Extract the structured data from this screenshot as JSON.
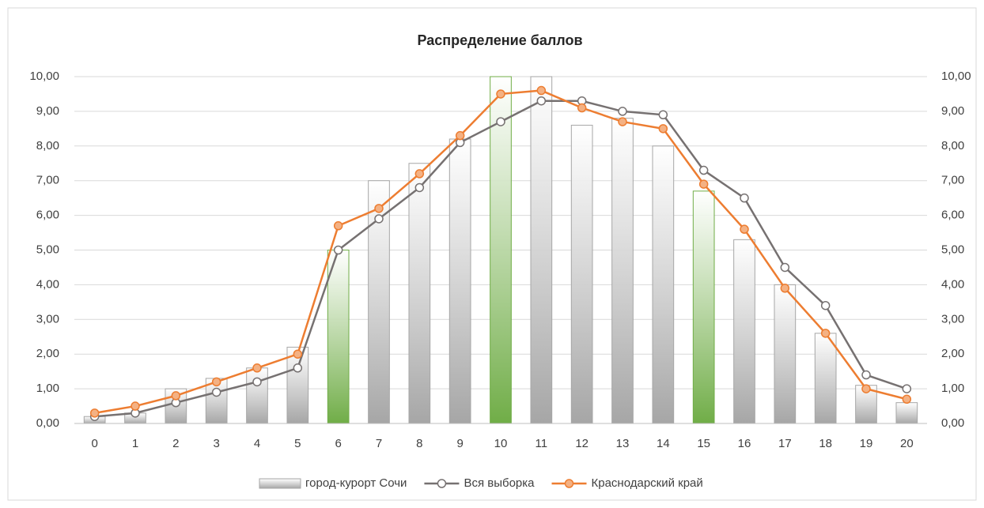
{
  "chart_data": {
    "type": "bar_line",
    "title": "Распределение баллов",
    "categories": [
      "0",
      "1",
      "2",
      "3",
      "4",
      "5",
      "6",
      "7",
      "8",
      "9",
      "10",
      "11",
      "12",
      "13",
      "14",
      "15",
      "16",
      "17",
      "18",
      "19",
      "20"
    ],
    "series": [
      {
        "name": "город-курорт Сочи",
        "type": "bar",
        "color": "#a6a6a6",
        "colors": [
          "#a6a6a6",
          "#a6a6a6",
          "#a6a6a6",
          "#a6a6a6",
          "#a6a6a6",
          "#a6a6a6",
          "#70ad47",
          "#a6a6a6",
          "#a6a6a6",
          "#a6a6a6",
          "#70ad47",
          "#a6a6a6",
          "#a6a6a6",
          "#a6a6a6",
          "#a6a6a6",
          "#70ad47",
          "#a6a6a6",
          "#a6a6a6",
          "#a6a6a6",
          "#a6a6a6",
          "#a6a6a6"
        ],
        "values": [
          0.2,
          0.3,
          1.0,
          1.3,
          1.6,
          2.2,
          5.0,
          7.0,
          7.5,
          8.2,
          10.0,
          10.0,
          8.6,
          8.8,
          8.0,
          6.7,
          5.3,
          4.0,
          2.6,
          1.1,
          0.6
        ]
      },
      {
        "name": "Вся выборка",
        "type": "line",
        "axis": "y2",
        "color": "#767171",
        "marker_fill": "#ffffff",
        "values": [
          0.2,
          0.3,
          0.6,
          0.9,
          1.2,
          1.6,
          5.0,
          5.9,
          6.8,
          8.1,
          8.7,
          9.3,
          9.3,
          9.0,
          8.9,
          7.3,
          6.5,
          4.5,
          3.4,
          1.4,
          1.0
        ]
      },
      {
        "name": "Краснодарский край",
        "type": "line",
        "axis": "y2",
        "color": "#ed7d31",
        "marker_fill": "#f4b183",
        "values": [
          0.3,
          0.5,
          0.8,
          1.2,
          1.6,
          2.0,
          5.7,
          6.2,
          7.2,
          8.3,
          9.5,
          9.6,
          9.1,
          8.7,
          8.5,
          6.9,
          5.6,
          3.9,
          2.6,
          1.0,
          0.7
        ]
      }
    ],
    "ylim": [
      0,
      10
    ],
    "yticks": [
      {
        "value": 0,
        "label": "0,00"
      },
      {
        "value": 1,
        "label": "1,00"
      },
      {
        "value": 2,
        "label": "2,00"
      },
      {
        "value": 3,
        "label": "3,00"
      },
      {
        "value": 4,
        "label": "4,00"
      },
      {
        "value": 5,
        "label": "5,00"
      },
      {
        "value": 6,
        "label": "6,00"
      },
      {
        "value": 7,
        "label": "7,00"
      },
      {
        "value": 8,
        "label": "8,00"
      },
      {
        "value": 9,
        "label": "9,00"
      },
      {
        "value": 10,
        "label": "10,00"
      }
    ],
    "y2lim": [
      0,
      10
    ],
    "y2ticks": [
      {
        "value": 0,
        "label": "0,00"
      },
      {
        "value": 1,
        "label": "1,00"
      },
      {
        "value": 2,
        "label": "2,00"
      },
      {
        "value": 3,
        "label": "3,00"
      },
      {
        "value": 4,
        "label": "4,00"
      },
      {
        "value": 5,
        "label": "5,00"
      },
      {
        "value": 6,
        "label": "6,00"
      },
      {
        "value": 7,
        "label": "7,00"
      },
      {
        "value": 8,
        "label": "8,00"
      },
      {
        "value": 9,
        "label": "9,00"
      },
      {
        "value": 10,
        "label": "10,00"
      }
    ],
    "grid": true,
    "legend": "bottom"
  }
}
